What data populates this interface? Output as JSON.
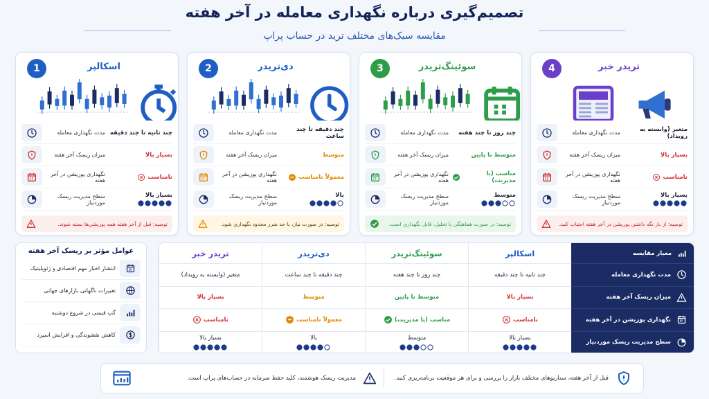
{
  "header": {
    "title": "تصمیم‌گیری درباره نگهداری معامله در آخر هفته",
    "subtitle": "مقایسه سبک‌های مختلف ترید در حساب پراپ"
  },
  "rating_scale": 5,
  "cards": [
    {
      "number": 1,
      "title": "اسکالپر",
      "color": "#1f5fc4",
      "rows": [
        {
          "label": "مدت نگهداری معامله",
          "value": "چند ثانیه تا چند دقیقه"
        },
        {
          "label": "میزان ریسک آخر هفته",
          "value": "بسیار بالا",
          "color": "#d32f2f"
        },
        {
          "label": "نگهداری پوزیشن در آخر هفته",
          "value": "نامناسب",
          "color": "#d32f2f",
          "icon": "x"
        },
        {
          "label": "سطح مدیریت ریسک موردنیاز",
          "value": "بسیار بالا",
          "rating": 5
        }
      ],
      "tip": {
        "text": "توصیه: قبل از آخر هفته همه پوزیشن‌ها بسته شوند.",
        "color": "#c62828",
        "bg": "#fdeeee"
      }
    },
    {
      "number": 2,
      "title": "دی‌تریدر",
      "color": "#1f5fc4",
      "rows": [
        {
          "label": "مدت نگهداری معامله",
          "value": "چند دقیقه تا چند ساعت"
        },
        {
          "label": "میزان ریسک آخر هفته",
          "value": "متوسط",
          "color": "#e08a00"
        },
        {
          "label": "نگهداری پوزیشن در آخر هفته",
          "value": "معمولاً نامناسب",
          "color": "#e08a00",
          "icon": "minus"
        },
        {
          "label": "سطح مدیریت ریسک موردنیاز",
          "value": "بالا",
          "rating": 4
        }
      ],
      "tip": {
        "text": "توصیه: در صورت نیاز، با حد ضرر محدود نگهداری شود.",
        "color": "#e08a00",
        "bg": "#fff6e3"
      }
    },
    {
      "number": 3,
      "title": "سوئینگ‌تریدر",
      "color": "#2e9d4a",
      "rows": [
        {
          "label": "مدت نگهداری معامله",
          "value": "چند روز تا چند هفته"
        },
        {
          "label": "میزان ریسک آخر هفته",
          "value": "متوسط تا پایین",
          "color": "#2e9d4a"
        },
        {
          "label": "نگهداری پوزیشن در آخر هفته",
          "value": "مناسب (با مدیریت)",
          "color": "#2e9d4a",
          "icon": "check"
        },
        {
          "label": "سطح مدیریت ریسک موردنیاز",
          "value": "متوسط",
          "rating": 3
        }
      ],
      "tip": {
        "text": "توصیه: در صورت هماهنگی با تحلیل، قابل نگهداری است.",
        "color": "#2e9d4a",
        "bg": "#e9f6ec"
      }
    },
    {
      "number": 4,
      "title": "تریدر خبر",
      "color": "#6b3fc9",
      "rows": [
        {
          "label": "مدت نگهداری معامله",
          "value": "متغیر (وابسته به رویداد)"
        },
        {
          "label": "میزان ریسک آخر هفته",
          "value": "بسیار بالا",
          "color": "#d32f2f"
        },
        {
          "label": "نگهداری پوزیشن در آخر هفته",
          "value": "نامناسب",
          "color": "#d32f2f",
          "icon": "x"
        },
        {
          "label": "سطح مدیریت ریسک موردنیاز",
          "value": "بسیار بالا",
          "rating": 5
        }
      ],
      "tip": {
        "text": "توصیه: از باز نگه داشتن پوزیشن در آخر هفته اجتناب کنید.",
        "color": "#c62828",
        "bg": "#fdeeee"
      }
    }
  ],
  "factors": {
    "title": "عوامل مؤثر بر ریسک آخر هفته",
    "items": [
      "انتشار اخبار مهم اقتصادی و ژئوپلیتیک",
      "تغییرات ناگهانی بازارهای جهانی",
      "گپ قیمتی در شروع دوشنبه",
      "کاهش نقشوندگی و افزایش اسپرد"
    ]
  },
  "comparison": {
    "header": "معیار مقایسه",
    "columns": [
      {
        "name": "اسکالپر",
        "color": "#1f5fc4"
      },
      {
        "name": "سوئینگ‌تریدر",
        "color": "#2e9d4a"
      },
      {
        "name": "دی‌تریدر",
        "color": "#1f5fc4"
      },
      {
        "name": "تریدر خبر",
        "color": "#6b3fc9"
      }
    ],
    "rows": [
      {
        "label": "مدت نگهداری معامله",
        "cells": [
          {
            "value": "چند ثانیه تا چند دقیقه"
          },
          {
            "value": "چند روز تا چند هفته"
          },
          {
            "value": "چند دقیقه تا چند ساعت"
          },
          {
            "value": "متغیر (وابسته به رویداد)"
          }
        ]
      },
      {
        "label": "میزان ریسک آخر هفته",
        "cells": [
          {
            "value": "بسیار بالا",
            "color": "#d32f2f"
          },
          {
            "value": "متوسط تا پایین",
            "color": "#2e9d4a"
          },
          {
            "value": "متوسط",
            "color": "#e08a00"
          },
          {
            "value": "بسیار بالا",
            "color": "#d32f2f"
          }
        ]
      },
      {
        "label": "نگهداری پوزیشن در آخر هفته",
        "cells": [
          {
            "value": "نامناسب",
            "color": "#d32f2f",
            "icon": "x"
          },
          {
            "value": "مناسب (با مدیریت)",
            "color": "#2e9d4a",
            "icon": "check"
          },
          {
            "value": "معمولاً نامناسب",
            "color": "#e08a00",
            "icon": "minus"
          },
          {
            "value": "نامناسب",
            "color": "#d32f2f",
            "icon": "x"
          }
        ]
      },
      {
        "label": "سطح مدیریت ریسک موردنیاز",
        "cells": [
          {
            "value": "بسیار بالا",
            "rating": 5
          },
          {
            "value": "متوسط",
            "rating": 3
          },
          {
            "value": "بالا",
            "rating": 4
          },
          {
            "value": "بسیار بالا",
            "rating": 5
          }
        ]
      }
    ]
  },
  "footer": {
    "text": "قبل از آخر هفته، سناریوهای مختلف بازار را بررسی و برای هر موقعیت برنامه‌ریزی کنید.",
    "note": "مدیریت ریسک هوشمند، کلید حفظ سرمایه در حساب‌های پراپ است."
  }
}
